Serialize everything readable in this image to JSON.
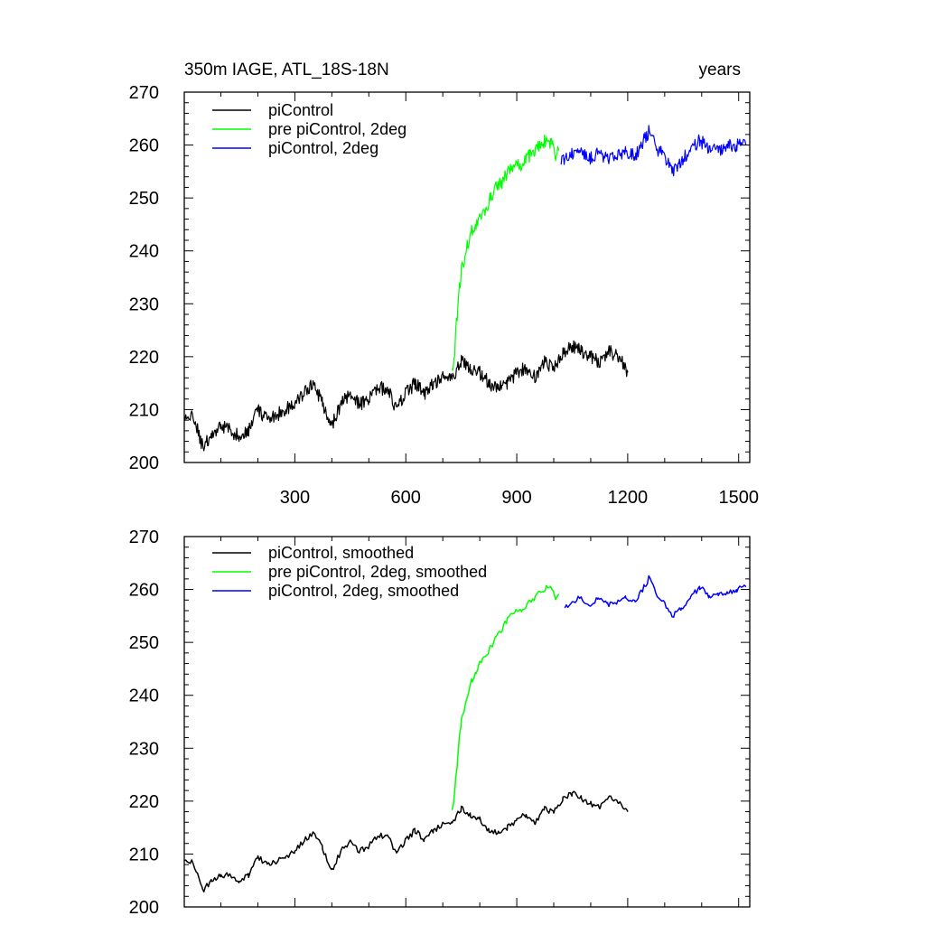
{
  "chart_data": [
    {
      "type": "line",
      "title": "350m IAGE, ATL_18S-18N",
      "title_right": "years",
      "xlabel": "",
      "ylabel": "",
      "xlim": [
        1,
        1530
      ],
      "ylim": [
        200,
        270
      ],
      "x_ticks": [
        300,
        600,
        900,
        1200,
        1500
      ],
      "y_ticks": [
        200,
        210,
        220,
        230,
        240,
        250,
        260,
        270
      ],
      "legend_position": "top-left",
      "series": [
        {
          "name": "piControl",
          "color": "#000000",
          "x": [
            1,
            25,
            50,
            75,
            100,
            125,
            150,
            175,
            200,
            225,
            250,
            275,
            300,
            325,
            350,
            375,
            400,
            425,
            450,
            475,
            500,
            525,
            550,
            575,
            600,
            625,
            650,
            675,
            700,
            725,
            750,
            775,
            800,
            825,
            850,
            875,
            900,
            925,
            950,
            975,
            1000,
            1025,
            1050,
            1075,
            1100,
            1125,
            1150,
            1175,
            1200
          ],
          "values": [
            208,
            209,
            203,
            205,
            207,
            206,
            205,
            206,
            210,
            208,
            209,
            210,
            211,
            213,
            215,
            211,
            207,
            211,
            213,
            211,
            212,
            214,
            214,
            210,
            213,
            215,
            213,
            215,
            216,
            216,
            219,
            218,
            217,
            215,
            214,
            215,
            217,
            218,
            216,
            219,
            218,
            221,
            222,
            221,
            220,
            219,
            221,
            220,
            217
          ]
        },
        {
          "name": "pre piControl, 2deg",
          "color": "#00ff00",
          "x": [
            725,
            730,
            735,
            740,
            745,
            750,
            760,
            770,
            780,
            790,
            800,
            815,
            830,
            845,
            860,
            875,
            890,
            905,
            920,
            935,
            950,
            965,
            980,
            995,
            1005,
            1015
          ],
          "values": [
            217,
            219,
            224,
            229,
            233,
            236,
            239,
            242,
            244,
            245,
            246,
            248,
            250,
            252,
            253,
            255,
            256,
            256,
            257,
            258,
            259,
            260,
            261,
            260,
            258,
            259
          ]
        },
        {
          "name": "piControl, 2deg",
          "color": "#0000ff",
          "x": [
            1020,
            1045,
            1070,
            1095,
            1120,
            1145,
            1170,
            1195,
            1220,
            1245,
            1260,
            1280,
            1300,
            1320,
            1345,
            1370,
            1395,
            1420,
            1445,
            1470,
            1495,
            1520
          ],
          "values": [
            257,
            258,
            259,
            257,
            259,
            257,
            258,
            259,
            258,
            261,
            263,
            259,
            258,
            255,
            257,
            259,
            261,
            259,
            259,
            260,
            260,
            260
          ]
        }
      ]
    },
    {
      "type": "line",
      "title": "",
      "xlabel": "",
      "ylabel": "",
      "xlim": [
        1,
        1530
      ],
      "ylim": [
        200,
        270
      ],
      "x_ticks": [
        300,
        600,
        900,
        1200,
        1500
      ],
      "y_ticks": [
        200,
        210,
        220,
        230,
        240,
        250,
        260,
        270
      ],
      "legend_position": "top-left",
      "series": [
        {
          "name": "piControl, smoothed",
          "color": "#000000",
          "x": [
            1,
            25,
            50,
            75,
            100,
            125,
            150,
            175,
            200,
            225,
            250,
            275,
            300,
            325,
            350,
            375,
            400,
            425,
            450,
            475,
            500,
            525,
            550,
            575,
            600,
            625,
            650,
            675,
            700,
            725,
            750,
            775,
            800,
            825,
            850,
            875,
            900,
            925,
            950,
            975,
            1000,
            1025,
            1050,
            1075,
            1100,
            1125,
            1150,
            1175,
            1200
          ],
          "values": [
            208.5,
            208.5,
            203,
            205,
            206,
            206,
            205,
            206,
            209.5,
            208,
            208.5,
            209.5,
            210.5,
            212.5,
            214,
            211,
            207,
            210.5,
            212.5,
            210.5,
            211.5,
            213.5,
            213.5,
            210,
            212.5,
            214.5,
            212.5,
            214.5,
            215.5,
            216,
            218.5,
            217.5,
            216.5,
            214.5,
            214,
            215,
            216.5,
            217.5,
            216,
            218.5,
            218,
            220.5,
            221.5,
            220.5,
            219.5,
            219,
            220.5,
            220,
            218
          ]
        },
        {
          "name": "pre piControl, 2deg, smoothed",
          "color": "#00ff00",
          "x": [
            725,
            730,
            735,
            740,
            745,
            750,
            760,
            770,
            780,
            790,
            800,
            815,
            830,
            845,
            860,
            875,
            890,
            905,
            920,
            935,
            950,
            965,
            980,
            995,
            1005,
            1015
          ],
          "values": [
            218,
            220,
            224,
            228,
            232,
            235,
            238,
            241,
            243,
            244.5,
            246,
            247.5,
            249,
            251,
            252.5,
            254.5,
            255.5,
            256,
            256.5,
            257.5,
            258.5,
            259.5,
            260.5,
            260,
            258.5,
            259
          ]
        },
        {
          "name": "piControl, 2deg, smoothed",
          "color": "#0000ff",
          "x": [
            1030,
            1050,
            1070,
            1095,
            1120,
            1145,
            1170,
            1195,
            1220,
            1245,
            1260,
            1280,
            1300,
            1320,
            1345,
            1370,
            1395,
            1420,
            1445,
            1470,
            1495,
            1520
          ],
          "values": [
            256.5,
            257.5,
            258.5,
            257,
            258.5,
            257,
            257.5,
            258.5,
            258,
            260.5,
            262.5,
            258.5,
            257.5,
            255,
            256.5,
            258.5,
            260.5,
            258.5,
            259,
            259.5,
            260,
            260.5
          ]
        }
      ]
    }
  ]
}
